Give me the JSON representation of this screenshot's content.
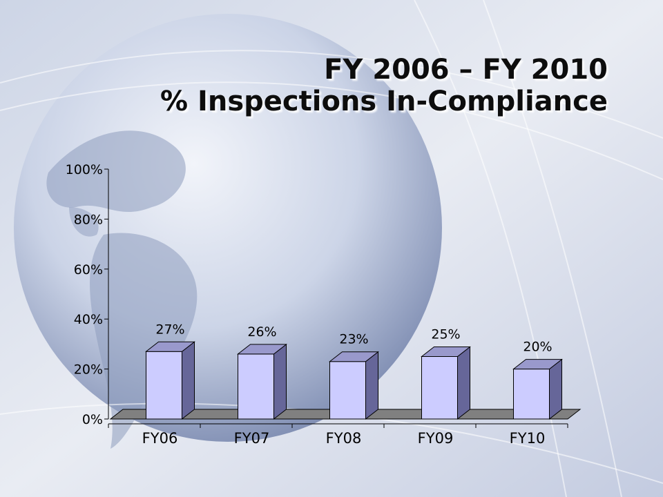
{
  "slide": {
    "title_line1": "FY 2006 – FY 2010",
    "title_line2": "% Inspections In-Compliance"
  },
  "chart_data": {
    "type": "bar",
    "categories": [
      "FY06",
      "FY07",
      "FY08",
      "FY09",
      "FY10"
    ],
    "values": [
      27,
      26,
      23,
      25,
      20
    ],
    "data_labels": [
      "27%",
      "26%",
      "23%",
      "25%",
      "20%"
    ],
    "y_ticks": [
      "0%",
      "20%",
      "40%",
      "60%",
      "80%",
      "100%"
    ],
    "ylim": [
      0,
      100
    ],
    "y_unit": "%",
    "bar_style": "3d",
    "grid": false,
    "legend": "none",
    "colors": {
      "bar_front": "#ccccff",
      "bar_side": "#666699",
      "bar_top": "#9999cc",
      "floor": "#808080",
      "axis": "#000000"
    }
  }
}
